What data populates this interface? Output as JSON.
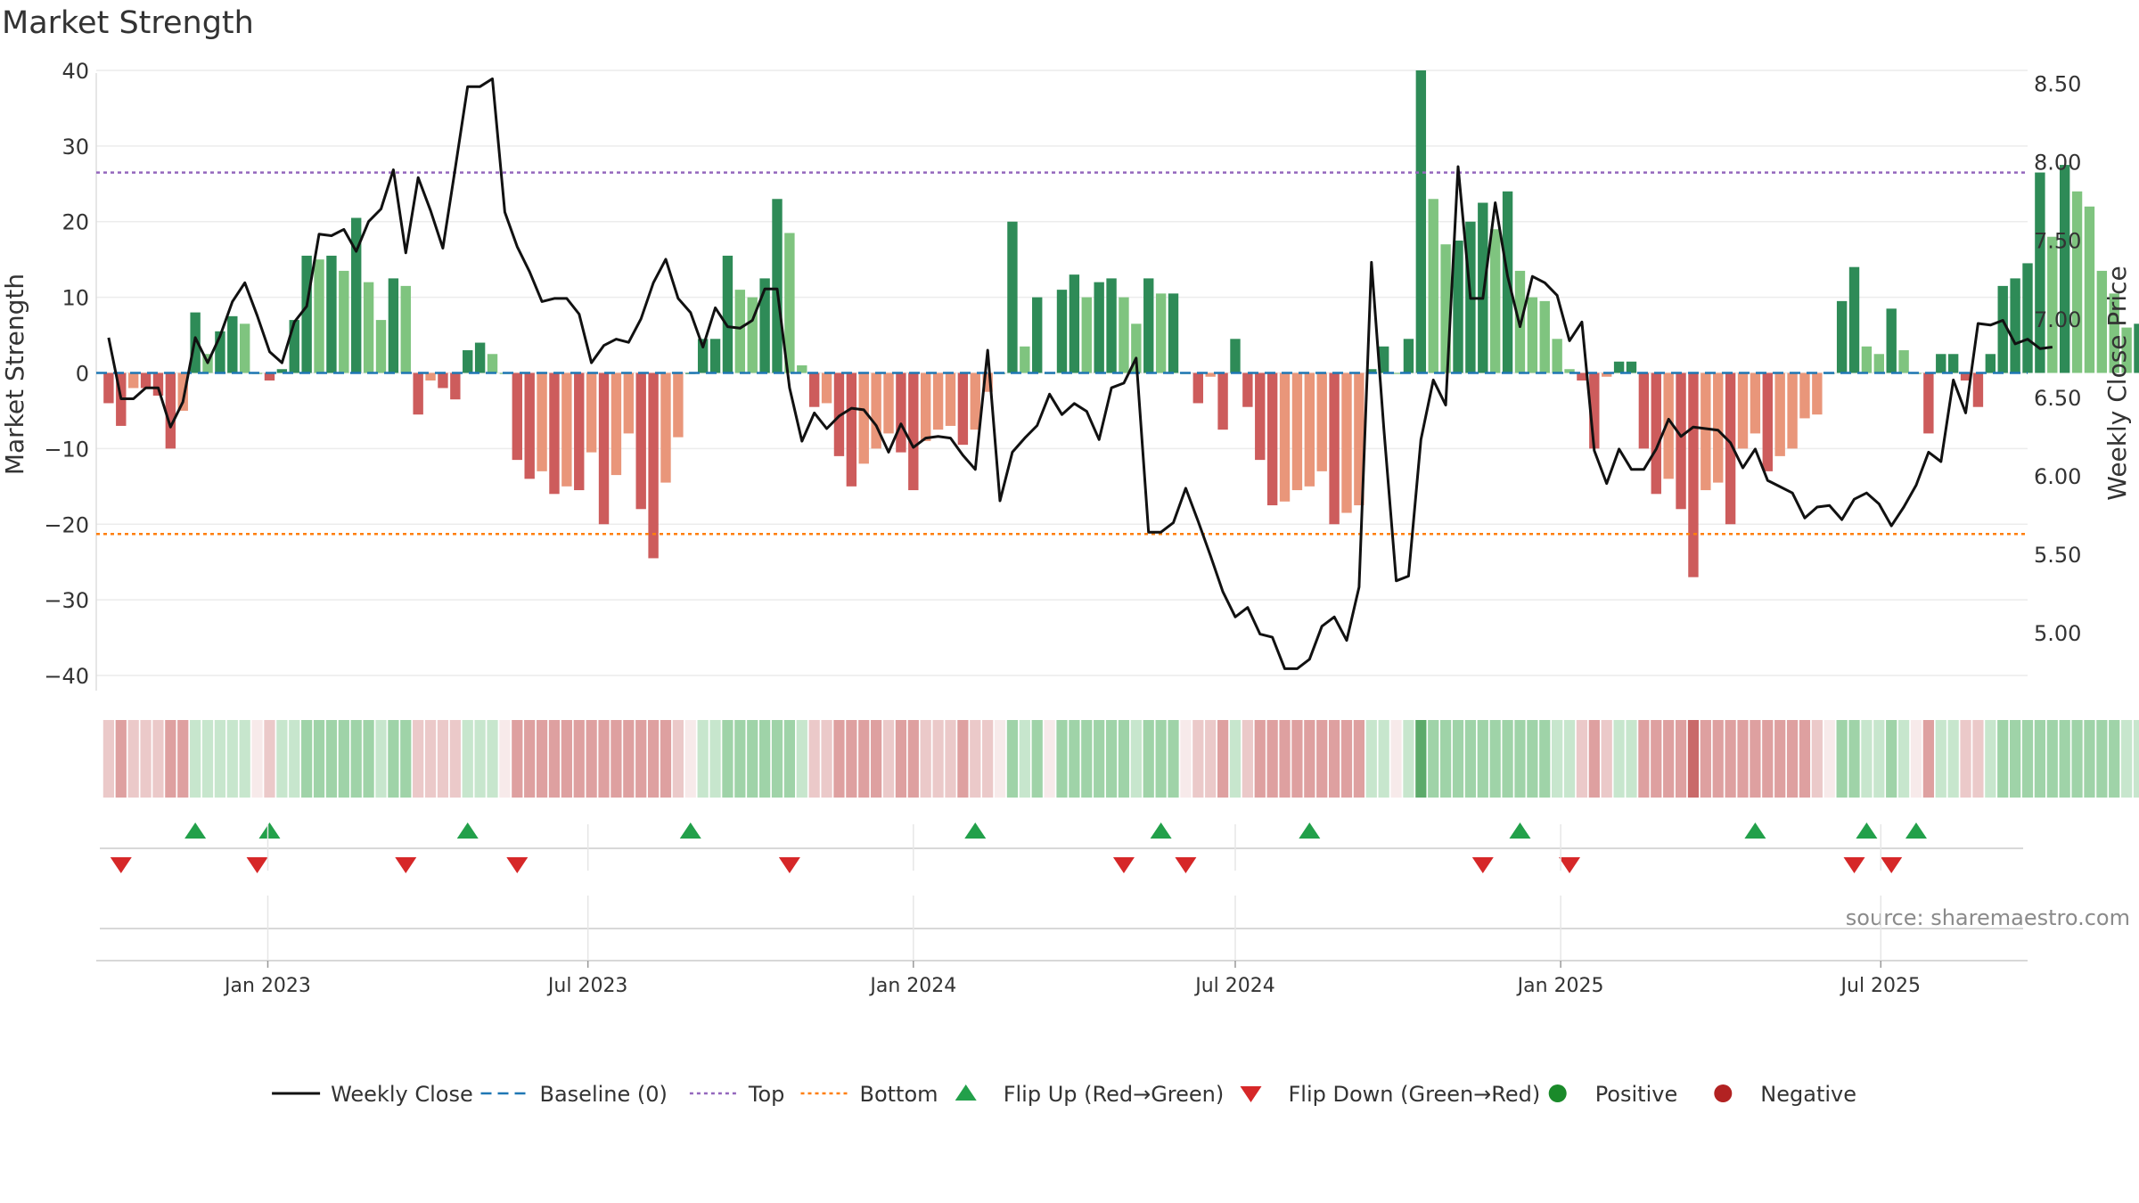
{
  "title": "Market Strength",
  "source": "source: sharemaestro.com",
  "colors": {
    "pos_dark": "#2e8b57",
    "pos_light": "#7fc47f",
    "neg_dark": "#cd5c5c",
    "neg_light": "#e9967a",
    "price": "#111111",
    "baseline": "#1f77b4",
    "top": "#9467bd",
    "bottom": "#ff7f0e",
    "flip_up": "#22a04a",
    "flip_down": "#d62728",
    "positive": "#1a8a2a",
    "negative": "#b22222"
  },
  "chart_data": {
    "type": "bar",
    "title": "Market Strength",
    "ylabel": "Market Strength",
    "y2label": "Weekly Close Price",
    "ylim": [
      -42,
      42
    ],
    "y2lim": [
      4.63,
      8.68
    ],
    "yticks": [
      40,
      30,
      20,
      10,
      0,
      -10,
      -20,
      -30,
      -40
    ],
    "y2ticks": [
      "8.50",
      "8.00",
      "7.50",
      "7.00",
      "6.50",
      "6.00",
      "5.50",
      "5.00"
    ],
    "y2tick_values": [
      8.5,
      8.0,
      7.5,
      7.0,
      6.5,
      6.0,
      5.5,
      5.0
    ],
    "x_range": [
      "2022-09-26",
      "2025-09-22"
    ],
    "xticks": [
      {
        "label": "Jan 2023",
        "date": "2023-01-01"
      },
      {
        "label": "Jul 2023",
        "date": "2023-07-01"
      },
      {
        "label": "Jan 2024",
        "date": "2024-01-01"
      },
      {
        "label": "Jul 2024",
        "date": "2024-07-01"
      },
      {
        "label": "Jan 2025",
        "date": "2025-01-01"
      },
      {
        "label": "Jul 2025",
        "date": "2025-07-01"
      }
    ],
    "top_level": 26.5,
    "bottom_level": -21.3,
    "baseline": 0,
    "start_date": "2022-10-03",
    "weekly_strength": [
      -4,
      -7,
      -2,
      -2,
      -3,
      -10,
      -5,
      8,
      2.5,
      5.5,
      7.5,
      6.5,
      0,
      -1,
      0.5,
      7,
      15.5,
      15,
      15.5,
      13.5,
      20.5,
      12,
      7,
      12.5,
      11.5,
      -5.5,
      -1,
      -2,
      -3.5,
      3,
      4,
      2.5,
      0,
      -11.5,
      -14,
      -13,
      -16,
      -15,
      -15.5,
      -10.5,
      -20,
      -13.5,
      -8,
      -18,
      -24.5,
      -14.5,
      -8.5,
      0,
      4.5,
      4.5,
      15.5,
      11,
      10,
      12.5,
      23,
      18.5,
      1,
      -4.5,
      -4,
      -11,
      -15,
      -12,
      -10,
      -8,
      -10.5,
      -15.5,
      -9,
      -7.5,
      -7,
      -9.5,
      -7.5,
      -2.5,
      0,
      20,
      3.5,
      10,
      0,
      11,
      13,
      10,
      12,
      12.5,
      10,
      6.5,
      12.5,
      10.5,
      10.5,
      0,
      -4,
      -0.5,
      -7.5,
      4.5,
      -4.5,
      -11.5,
      -17.5,
      -17,
      -15.5,
      -15,
      -13,
      -20,
      -18.5,
      -17.5,
      0.5,
      3.5,
      0,
      4.5,
      40,
      23,
      17,
      17.5,
      20,
      22.5,
      19,
      24,
      13.5,
      10,
      9.5,
      4.5,
      0.5,
      -1,
      -10,
      -0.5,
      1.5,
      1.5,
      -10,
      -16,
      -14,
      -18,
      -27,
      -15.5,
      -14.5,
      -20,
      -10,
      -8,
      -13,
      -11,
      -10,
      -6,
      -5.5,
      0,
      9.5,
      14,
      3.5,
      2.5,
      8.5,
      3,
      0,
      -8,
      2.5,
      2.5,
      -1,
      -4.5,
      2.5,
      11.5,
      12.5,
      14.5,
      26.5,
      18,
      27.5,
      24,
      22,
      13.5,
      10.5,
      6,
      6.5
    ],
    "weekly_close": [
      6.88,
      6.49,
      6.49,
      6.56,
      6.56,
      6.31,
      6.47,
      6.88,
      6.72,
      6.89,
      7.11,
      7.23,
      7.02,
      6.79,
      6.72,
      6.98,
      7.08,
      7.54,
      7.53,
      7.57,
      7.43,
      7.62,
      7.7,
      7.95,
      7.42,
      7.9,
      7.69,
      7.45,
      7.96,
      8.48,
      8.48,
      8.53,
      7.68,
      7.46,
      7.3,
      7.11,
      7.13,
      7.13,
      7.03,
      6.72,
      6.83,
      6.87,
      6.85,
      7.0,
      7.23,
      7.38,
      7.13,
      7.04,
      6.82,
      7.07,
      6.95,
      6.94,
      6.99,
      7.19,
      7.19,
      6.56,
      6.22,
      6.4,
      6.3,
      6.38,
      6.43,
      6.42,
      6.32,
      6.15,
      6.33,
      6.18,
      6.24,
      6.25,
      6.24,
      6.13,
      6.04,
      6.8,
      5.84,
      6.15,
      6.24,
      6.32,
      6.52,
      6.39,
      6.46,
      6.41,
      6.23,
      6.56,
      6.59,
      6.75,
      5.64,
      5.64,
      5.7,
      5.92,
      5.71,
      5.49,
      5.26,
      5.1,
      5.16,
      4.99,
      4.97,
      4.77,
      4.77,
      4.83,
      5.04,
      5.1,
      4.95,
      5.29,
      7.36,
      6.3,
      5.33,
      5.36,
      6.23,
      6.61,
      6.45,
      7.97,
      7.13,
      7.13,
      7.74,
      7.27,
      6.95,
      7.27,
      7.23,
      7.15,
      6.86,
      6.98,
      6.16,
      5.95,
      6.17,
      6.04,
      6.04,
      6.17,
      6.36,
      6.25,
      6.31,
      6.3,
      6.29,
      6.21,
      6.05,
      6.17,
      5.97,
      5.93,
      5.89,
      5.73,
      5.8,
      5.81,
      5.72,
      5.85,
      5.89,
      5.82,
      5.68,
      5.8,
      5.94,
      6.15,
      6.09,
      6.61,
      6.4,
      6.97,
      6.96,
      6.99,
      6.84,
      6.87,
      6.81,
      6.82
    ],
    "strength_strip": [
      -1,
      -2,
      -1,
      -1,
      -1,
      -2,
      -2,
      1,
      1,
      1,
      1,
      1,
      0,
      -1,
      1,
      1,
      2,
      2,
      2,
      2,
      2,
      2,
      1,
      2,
      2,
      -1,
      -1,
      -1,
      -1,
      1,
      1,
      1,
      0,
      -2,
      -2,
      -2,
      -2,
      -2,
      -2,
      -2,
      -2,
      -2,
      -2,
      -2,
      -2,
      -2,
      -1,
      0,
      1,
      1,
      2,
      2,
      2,
      2,
      2,
      2,
      1,
      -1,
      -1,
      -2,
      -2,
      -2,
      -2,
      -1,
      -2,
      -2,
      -1,
      -1,
      -1,
      -2,
      -1,
      -1,
      0,
      2,
      1,
      2,
      0,
      2,
      2,
      2,
      2,
      2,
      2,
      1,
      2,
      2,
      2,
      0,
      -1,
      -1,
      -2,
      1,
      -1,
      -2,
      -2,
      -2,
      -2,
      -2,
      -2,
      -2,
      -2,
      -2,
      1,
      1,
      0,
      1,
      3,
      2,
      2,
      2,
      2,
      2,
      2,
      2,
      2,
      2,
      2,
      1,
      1,
      -1,
      -2,
      -1,
      1,
      1,
      -2,
      -2,
      -2,
      -2,
      -3,
      -2,
      -2,
      -2,
      -2,
      -2,
      -2,
      -2,
      -2,
      -2,
      -1,
      0,
      2,
      2,
      1,
      1,
      2,
      1,
      0,
      -2,
      1,
      1,
      -1,
      -1,
      1,
      2,
      2,
      2,
      2,
      2,
      2,
      2,
      2,
      2,
      2,
      1,
      1
    ],
    "flip_up_dates": [
      "2022-11-21",
      "2023-01-02",
      "2023-04-24",
      "2023-08-28",
      "2024-02-05",
      "2024-05-20",
      "2024-08-12",
      "2024-12-09",
      "2025-04-21",
      "2025-06-23",
      "2025-07-21"
    ],
    "flip_down_dates": [
      "2022-10-10",
      "2022-12-26",
      "2023-03-20",
      "2023-05-22",
      "2023-10-23",
      "2024-04-29",
      "2024-06-03",
      "2024-11-18",
      "2025-01-06",
      "2025-06-16",
      "2025-07-07"
    ]
  },
  "legend": [
    {
      "label": "Weekly Close",
      "kind": "line",
      "color": "#111111"
    },
    {
      "label": "Baseline (0)",
      "kind": "dash",
      "color": "#1f77b4"
    },
    {
      "label": "Top",
      "kind": "dot",
      "color": "#9467bd"
    },
    {
      "label": "Bottom",
      "kind": "dot",
      "color": "#ff7f0e"
    },
    {
      "label": "Flip Up (Red→Green)",
      "kind": "tri-up",
      "color": "#22a04a"
    },
    {
      "label": "Flip Down (Green→Red)",
      "kind": "tri-down",
      "color": "#d62728"
    },
    {
      "label": "Positive",
      "kind": "circle",
      "color": "#1a8a2a"
    },
    {
      "label": "Negative",
      "kind": "circle",
      "color": "#b22222"
    }
  ]
}
